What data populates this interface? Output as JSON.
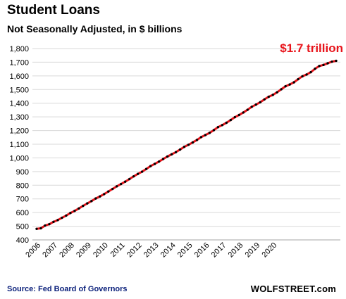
{
  "header": {
    "title": "Student Loans",
    "subtitle": "Not Seasonally Adjusted, in $ billions"
  },
  "annotation": "$1.7 trillion",
  "footer": {
    "source": "Source: Fed Board of Governors",
    "brand": "WOLFSTREET.com"
  },
  "colors": {
    "line": "#e8141b",
    "marker": "#000000",
    "annotation": "#e8141b",
    "source": "#0a1f7a"
  },
  "chart_data": {
    "type": "line",
    "title": "Student Loans",
    "subtitle": "Not Seasonally Adjusted, in $ billions",
    "xlabel": "",
    "ylabel": "",
    "ylim": [
      400,
      1800
    ],
    "yticks": [
      400,
      500,
      600,
      700,
      800,
      900,
      1000,
      1100,
      1200,
      1300,
      1400,
      1500,
      1600,
      1700,
      1800
    ],
    "ytick_labels": [
      "400",
      "500",
      "600",
      "700",
      "800",
      "900",
      "1,000",
      "1,100",
      "1,200",
      "1,300",
      "1,400",
      "1,500",
      "1,600",
      "1,700",
      "1,800"
    ],
    "xtick_labels": [
      "2006",
      "2007",
      "2008",
      "2009",
      "2010",
      "2011",
      "2012",
      "2013",
      "2014",
      "2015",
      "2016",
      "2017",
      "2018",
      "2019",
      "2020"
    ],
    "grid": "horizontal",
    "legend": "none",
    "x_start": "2006 Q1",
    "frequency": "quarterly",
    "series": [
      {
        "values": [
          481,
          485,
          505,
          515,
          532,
          545,
          562,
          578,
          597,
          612,
          630,
          649,
          667,
          684,
          703,
          718,
          735,
          754,
          773,
          792,
          809,
          826,
          845,
          865,
          883,
          899,
          919,
          940,
          956,
          973,
          992,
          1010,
          1026,
          1042,
          1061,
          1081,
          1096,
          1113,
          1131,
          1152,
          1167,
          1183,
          1203,
          1225,
          1240,
          1257,
          1277,
          1298,
          1314,
          1332,
          1352,
          1374,
          1390,
          1407,
          1428,
          1447,
          1461,
          1480,
          1502,
          1524,
          1537,
          1553,
          1576,
          1597,
          1610,
          1627,
          1652,
          1672,
          1680,
          1692,
          1704,
          1710
        ]
      }
    ]
  }
}
